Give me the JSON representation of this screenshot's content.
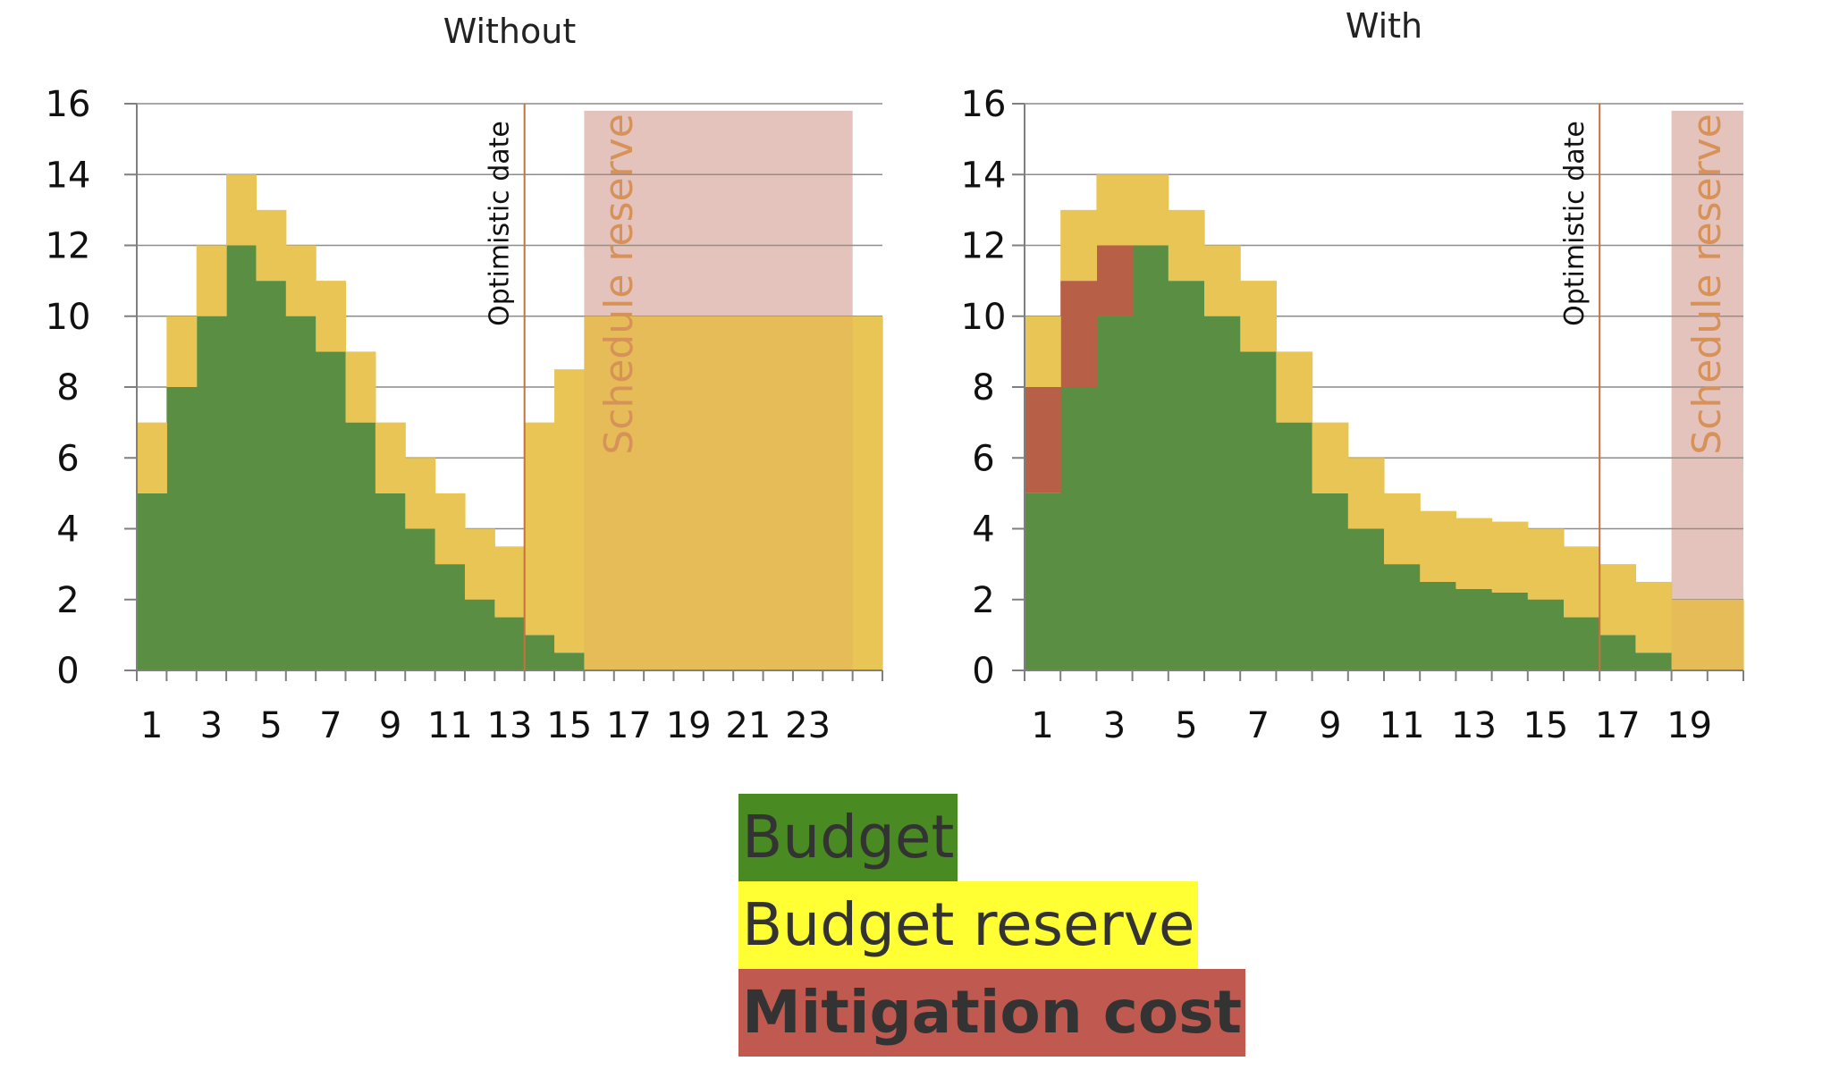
{
  "chart_data": [
    {
      "type": "bar",
      "stacked": true,
      "title": "Without",
      "xlabel": "",
      "ylabel": "",
      "ylim": [
        0,
        16
      ],
      "y_ticks": [
        0,
        2,
        4,
        6,
        8,
        10,
        12,
        14,
        16
      ],
      "x_tick_labels": [
        "1",
        "3",
        "5",
        "7",
        "9",
        "11",
        "13",
        "15",
        "17",
        "19",
        "21",
        "23"
      ],
      "categories": [
        1,
        2,
        3,
        4,
        5,
        6,
        7,
        8,
        9,
        10,
        11,
        12,
        13,
        14,
        15,
        16,
        17,
        18,
        19,
        20,
        21,
        22,
        23,
        24,
        25
      ],
      "series": [
        {
          "name": "Budget",
          "color": "#5a8f43",
          "values": [
            5,
            8,
            10,
            12,
            11,
            10,
            9,
            7,
            5,
            4,
            3,
            2,
            1.5,
            1,
            0.5,
            0,
            0,
            0,
            0,
            0,
            0,
            0,
            0,
            0,
            0
          ]
        },
        {
          "name": "Budget reserve",
          "color": "#e9c555",
          "values": [
            2,
            2,
            2,
            2,
            2,
            2,
            2,
            2,
            2,
            2,
            2,
            2,
            2,
            6,
            8,
            10,
            10,
            10,
            10,
            10,
            10,
            10,
            10,
            10,
            10
          ]
        },
        {
          "name": "Mitigation cost",
          "color": "#b85f48",
          "values": [
            0,
            0,
            0,
            0,
            0,
            0,
            0,
            0,
            0,
            0,
            0,
            0,
            0,
            0,
            0,
            0,
            0,
            0,
            0,
            0,
            0,
            0,
            0,
            0,
            0
          ]
        }
      ],
      "grid": true,
      "optimistic_date": {
        "label": "Optimistic date",
        "x": 13.5
      },
      "schedule_reserve": {
        "label": "Schedule reserve",
        "x_start": 15.5,
        "x_end": 24.5,
        "y_top": 15.8
      }
    },
    {
      "type": "bar",
      "stacked": true,
      "title": "With",
      "xlabel": "",
      "ylabel": "",
      "ylim": [
        0,
        16
      ],
      "y_ticks": [
        0,
        2,
        4,
        6,
        8,
        10,
        12,
        14,
        16
      ],
      "x_tick_labels": [
        "1",
        "3",
        "5",
        "7",
        "9",
        "11",
        "13",
        "15",
        "17",
        "19"
      ],
      "categories": [
        1,
        2,
        3,
        4,
        5,
        6,
        7,
        8,
        9,
        10,
        11,
        12,
        13,
        14,
        15,
        16,
        17,
        18,
        19,
        20
      ],
      "series": [
        {
          "name": "Budget",
          "color": "#5a8f43",
          "values": [
            5,
            8,
            10,
            12,
            11,
            10,
            9,
            7,
            5,
            4,
            3,
            2.5,
            2.3,
            2.2,
            2,
            1.5,
            1,
            0.5,
            0,
            0
          ]
        },
        {
          "name": "Mitigation cost",
          "color": "#b85f48",
          "values": [
            3,
            3,
            2,
            0,
            0,
            0,
            0,
            0,
            0,
            0,
            0,
            0,
            0,
            0,
            0,
            0,
            0,
            0,
            0,
            0
          ]
        },
        {
          "name": "Budget reserve",
          "color": "#e9c555",
          "values": [
            2,
            2,
            2,
            2,
            2,
            2,
            2,
            2,
            2,
            2,
            2,
            2,
            2,
            2,
            2,
            2,
            2,
            2,
            2,
            2
          ]
        }
      ],
      "grid": true,
      "optimistic_date": {
        "label": "Optimistic date",
        "x": 16.5
      },
      "schedule_reserve": {
        "label": "Schedule reserve",
        "x_start": 18.5,
        "x_end": 20.5,
        "y_top": 15.8
      }
    }
  ],
  "legend": {
    "placement": "bottom-center",
    "items": [
      {
        "label": "Budget",
        "color": "#4a8a22"
      },
      {
        "label": "Budget reserve",
        "color": "#ffff33"
      },
      {
        "label": "Mitigation cost",
        "color": "#c05a50"
      }
    ]
  }
}
